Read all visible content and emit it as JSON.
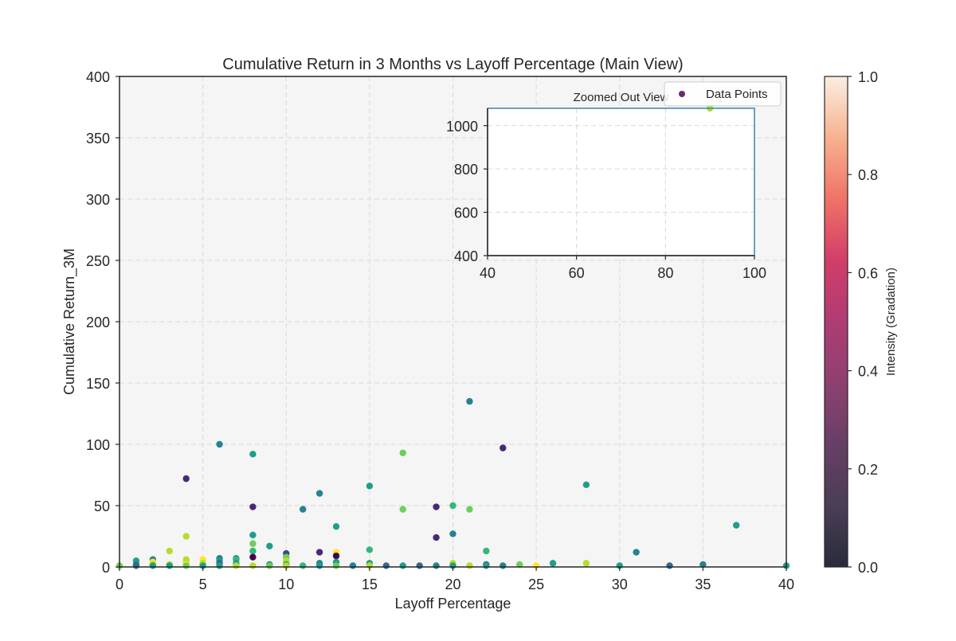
{
  "chart_data": [
    {
      "type": "scatter",
      "title": "Cumulative Return in 3 Months vs Layoff Percentage (Main View)",
      "xlabel": "Layoff Percentage",
      "ylabel": "Cumulative Return_3M",
      "xlim": [
        0,
        40
      ],
      "ylim": [
        0,
        400
      ],
      "xticks": [
        0,
        5,
        10,
        15,
        20,
        25,
        30,
        35,
        40
      ],
      "yticks": [
        0,
        50,
        100,
        150,
        200,
        250,
        300,
        350,
        400
      ],
      "grid": true,
      "legend": {
        "position": "top-right",
        "entries": [
          "Data Points"
        ],
        "marker_color": "#6a2c70"
      },
      "colormap": "viridis",
      "series": [
        {
          "points": [
            {
              "x": 0,
              "y": 1,
              "c": 0.75
            },
            {
              "x": 1,
              "y": 5,
              "c": 0.5
            },
            {
              "x": 1,
              "y": 2,
              "c": 0.4
            },
            {
              "x": 1,
              "y": 1,
              "c": 0.3
            },
            {
              "x": 2,
              "y": 6,
              "c": 0.45
            },
            {
              "x": 2,
              "y": 4,
              "c": 0.95
            },
            {
              "x": 2,
              "y": 2,
              "c": 0.9
            },
            {
              "x": 2,
              "y": 1,
              "c": 0.55
            },
            {
              "x": 3,
              "y": 13,
              "c": 0.9
            },
            {
              "x": 3,
              "y": 2,
              "c": 0.85
            },
            {
              "x": 3,
              "y": 1,
              "c": 0.5
            },
            {
              "x": 4,
              "y": 72,
              "c": 0.1
            },
            {
              "x": 4,
              "y": 25,
              "c": 0.88
            },
            {
              "x": 4,
              "y": 6,
              "c": 0.85
            },
            {
              "x": 4,
              "y": 4,
              "c": 0.9
            },
            {
              "x": 4,
              "y": 2,
              "c": 0.95
            },
            {
              "x": 4,
              "y": 1,
              "c": 0.8
            },
            {
              "x": 5,
              "y": 6,
              "c": 0.95
            },
            {
              "x": 5,
              "y": 3,
              "c": 0.9
            },
            {
              "x": 5,
              "y": 1,
              "c": 0.6
            },
            {
              "x": 6,
              "y": 100,
              "c": 0.48
            },
            {
              "x": 6,
              "y": 7,
              "c": 0.45
            },
            {
              "x": 6,
              "y": 5,
              "c": 0.5
            },
            {
              "x": 6,
              "y": 3,
              "c": 0.35
            },
            {
              "x": 6,
              "y": 1,
              "c": 0.5
            },
            {
              "x": 7,
              "y": 7,
              "c": 0.6
            },
            {
              "x": 7,
              "y": 6,
              "c": 0.7
            },
            {
              "x": 7,
              "y": 3,
              "c": 0.5
            },
            {
              "x": 7,
              "y": 1,
              "c": 0.9
            },
            {
              "x": 8,
              "y": 92,
              "c": 0.5
            },
            {
              "x": 8,
              "y": 49,
              "c": 0.12
            },
            {
              "x": 8,
              "y": 26,
              "c": 0.6
            },
            {
              "x": 8,
              "y": 19,
              "c": 0.82
            },
            {
              "x": 8,
              "y": 13,
              "c": 0.68
            },
            {
              "x": 8,
              "y": 8,
              "c": 0.05
            },
            {
              "x": 8,
              "y": 1,
              "c": 0.9
            },
            {
              "x": 9,
              "y": 17,
              "c": 0.55
            },
            {
              "x": 9,
              "y": 2,
              "c": 0.4
            },
            {
              "x": 9,
              "y": 1,
              "c": 0.8
            },
            {
              "x": 10,
              "y": 11,
              "c": 0.25
            },
            {
              "x": 10,
              "y": 8,
              "c": 0.75
            },
            {
              "x": 10,
              "y": 5,
              "c": 0.9
            },
            {
              "x": 10,
              "y": 2,
              "c": 0.5
            },
            {
              "x": 10,
              "y": 1,
              "c": 0.85
            },
            {
              "x": 11,
              "y": 47,
              "c": 0.45
            },
            {
              "x": 11,
              "y": 1,
              "c": 0.7
            },
            {
              "x": 12,
              "y": 60,
              "c": 0.45
            },
            {
              "x": 12,
              "y": 12,
              "c": 0.1
            },
            {
              "x": 12,
              "y": 3,
              "c": 0.4
            },
            {
              "x": 12,
              "y": 1,
              "c": 0.5
            },
            {
              "x": 13,
              "y": 33,
              "c": 0.6
            },
            {
              "x": 13,
              "y": 12,
              "c": 1.0
            },
            {
              "x": 13,
              "y": 9,
              "c": 0.0
            },
            {
              "x": 13,
              "y": 4,
              "c": 0.6
            },
            {
              "x": 13,
              "y": 1,
              "c": 0.8
            },
            {
              "x": 14,
              "y": 1,
              "c": 0.4
            },
            {
              "x": 15,
              "y": 66,
              "c": 0.6
            },
            {
              "x": 15,
              "y": 14,
              "c": 0.7
            },
            {
              "x": 15,
              "y": 3,
              "c": 0.5
            },
            {
              "x": 15,
              "y": 1,
              "c": 0.9
            },
            {
              "x": 16,
              "y": 1,
              "c": 0.3
            },
            {
              "x": 17,
              "y": 93,
              "c": 0.82
            },
            {
              "x": 17,
              "y": 47,
              "c": 0.75
            },
            {
              "x": 17,
              "y": 1,
              "c": 0.5
            },
            {
              "x": 18,
              "y": 1,
              "c": 0.35
            },
            {
              "x": 19,
              "y": 49,
              "c": 0.12
            },
            {
              "x": 19,
              "y": 24,
              "c": 0.15
            },
            {
              "x": 19,
              "y": 1,
              "c": 0.4
            },
            {
              "x": 20,
              "y": 50,
              "c": 0.65
            },
            {
              "x": 20,
              "y": 27,
              "c": 0.45
            },
            {
              "x": 20,
              "y": 3,
              "c": 0.9
            },
            {
              "x": 20,
              "y": 1,
              "c": 0.5
            },
            {
              "x": 21,
              "y": 135,
              "c": 0.45
            },
            {
              "x": 21,
              "y": 47,
              "c": 0.8
            },
            {
              "x": 21,
              "y": 1,
              "c": 0.9
            },
            {
              "x": 22,
              "y": 13,
              "c": 0.65
            },
            {
              "x": 22,
              "y": 2,
              "c": 0.35
            },
            {
              "x": 22,
              "y": 1,
              "c": 0.5
            },
            {
              "x": 23,
              "y": 97,
              "c": 0.12
            },
            {
              "x": 23,
              "y": 1,
              "c": 0.4
            },
            {
              "x": 24,
              "y": 2,
              "c": 0.75
            },
            {
              "x": 25,
              "y": 1,
              "c": 0.95
            },
            {
              "x": 26,
              "y": 3,
              "c": 0.5
            },
            {
              "x": 28,
              "y": 67,
              "c": 0.5
            },
            {
              "x": 28,
              "y": 3,
              "c": 0.85
            },
            {
              "x": 30,
              "y": 1,
              "c": 0.5
            },
            {
              "x": 31,
              "y": 12,
              "c": 0.45
            },
            {
              "x": 33,
              "y": 1,
              "c": 0.3
            },
            {
              "x": 35,
              "y": 2,
              "c": 0.45
            },
            {
              "x": 37,
              "y": 34,
              "c": 0.5
            },
            {
              "x": 40,
              "y": 1,
              "c": 0.6
            }
          ]
        }
      ]
    },
    {
      "type": "scatter",
      "title": "Zoomed Out View",
      "xlim": [
        40,
        100
      ],
      "ylim": [
        400,
        1080
      ],
      "xticks": [
        40,
        60,
        80,
        100
      ],
      "yticks": [
        400,
        600,
        800,
        1000
      ],
      "grid": true,
      "series": [
        {
          "points": [
            {
              "x": 90,
              "y": 1080,
              "c": 0.85
            }
          ]
        }
      ]
    }
  ],
  "colorbar": {
    "label": "Intensity (Gradation)",
    "ticks": [
      "0.0",
      "0.2",
      "0.4",
      "0.6",
      "0.8",
      "1.0"
    ],
    "colormap": "rocket",
    "alpha": 0.85
  }
}
